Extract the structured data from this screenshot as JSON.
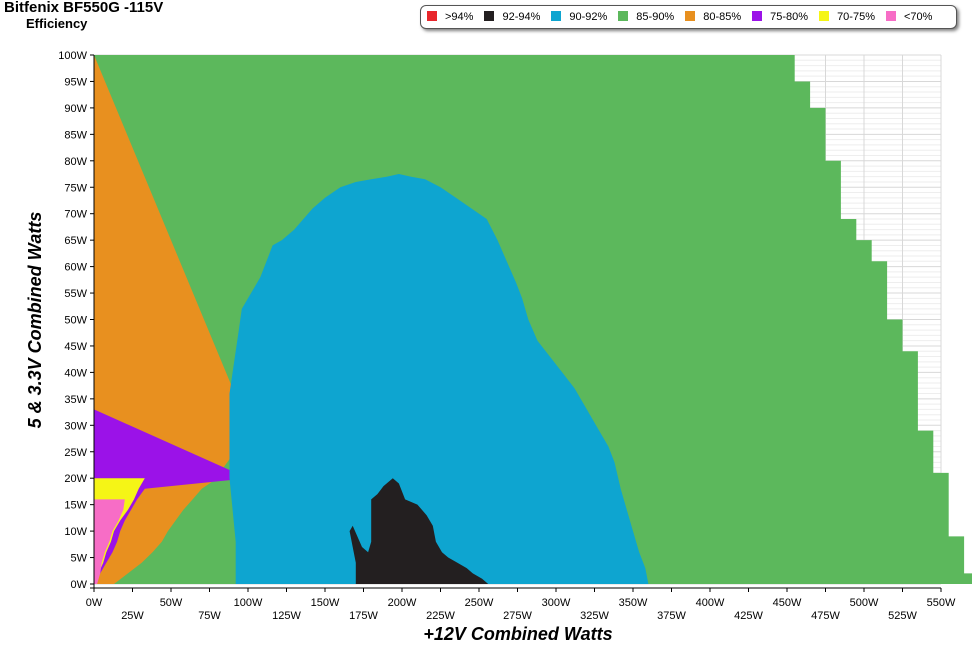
{
  "chart_data": {
    "type": "heatmap",
    "title": "Bitfenix BF550G -115V",
    "subtitle": "Efficiency",
    "xlabel": "+12V Combined Watts",
    "ylabel": "5 & 3.3V Combined Watts",
    "xlim": [
      0,
      550
    ],
    "ylim": [
      0,
      100
    ],
    "x_ticks": [
      "0W",
      "25W",
      "50W",
      "75W",
      "100W",
      "125W",
      "150W",
      "175W",
      "200W",
      "225W",
      "250W",
      "275W",
      "300W",
      "325W",
      "350W",
      "375W",
      "400W",
      "425W",
      "450W",
      "475W",
      "500W",
      "525W",
      "550W"
    ],
    "y_ticks": [
      "0W",
      "5W",
      "10W",
      "15W",
      "20W",
      "25W",
      "30W",
      "35W",
      "40W",
      "45W",
      "50W",
      "55W",
      "60W",
      "65W",
      "70W",
      "75W",
      "80W",
      "85W",
      "90W",
      "95W",
      "100W"
    ],
    "grid": true,
    "legend_position": "top-right",
    "legend": [
      {
        "label": ">94%",
        "color": "#e8262b"
      },
      {
        "label": "92-94%",
        "color": "#231f20"
      },
      {
        "label": "90-92%",
        "color": "#0ea5d0"
      },
      {
        "label": "85-90%",
        "color": "#5cb85c"
      },
      {
        "label": "80-85%",
        "color": "#e8901f"
      },
      {
        "label": "75-80%",
        "color": "#9b12e8"
      },
      {
        "label": "70-75%",
        "color": "#f5f516"
      },
      {
        "label": "<70%",
        "color": "#f76dc6"
      }
    ],
    "regions": {
      "max_total_load": [
        [
          0,
          100
        ],
        [
          455,
          100
        ],
        [
          455,
          95
        ],
        [
          465,
          95
        ],
        [
          465,
          90
        ],
        [
          475,
          90
        ],
        [
          475,
          80
        ],
        [
          485,
          80
        ],
        [
          485,
          69
        ],
        [
          495,
          69
        ],
        [
          495,
          65
        ],
        [
          505,
          65
        ],
        [
          505,
          61
        ],
        [
          515,
          61
        ],
        [
          515,
          50
        ],
        [
          525,
          50
        ],
        [
          525,
          44
        ],
        [
          535,
          44
        ],
        [
          535,
          29
        ],
        [
          545,
          29
        ],
        [
          545,
          21
        ],
        [
          555,
          21
        ],
        [
          555,
          9
        ],
        [
          565,
          9
        ],
        [
          565,
          2
        ],
        [
          575,
          2
        ],
        [
          575,
          0
        ],
        [
          0,
          0
        ]
      ],
      "band_85_90_min_x": [
        [
          0,
          13
        ],
        [
          2,
          22
        ],
        [
          4,
          31
        ],
        [
          6,
          38
        ],
        [
          8,
          44
        ],
        [
          10,
          48
        ],
        [
          12,
          53
        ],
        [
          14,
          58
        ],
        [
          16,
          64
        ],
        [
          18,
          70
        ],
        [
          20,
          80
        ],
        [
          22,
          84
        ],
        [
          24,
          89
        ],
        [
          26,
          93
        ],
        [
          28,
          99
        ],
        [
          30,
          100
        ]
      ],
      "band_80_85_min_x": [
        [
          0,
          1
        ],
        [
          2,
          4
        ],
        [
          4,
          8
        ],
        [
          6,
          12
        ],
        [
          8,
          15
        ],
        [
          10,
          17
        ],
        [
          12,
          20
        ],
        [
          14,
          24
        ],
        [
          16,
          28
        ],
        [
          18,
          33
        ],
        [
          20,
          100
        ]
      ],
      "band_75_80_min_x": [
        [
          0,
          1
        ],
        [
          2,
          3
        ],
        [
          4,
          6
        ],
        [
          6,
          8
        ],
        [
          8,
          11
        ],
        [
          10,
          13
        ],
        [
          12,
          17
        ],
        [
          14,
          22
        ],
        [
          16,
          26
        ],
        [
          18,
          29
        ],
        [
          20,
          33
        ]
      ],
      "band_70_75_min_x": [
        [
          0,
          2
        ],
        [
          2,
          4
        ],
        [
          4,
          5
        ],
        [
          6,
          7
        ],
        [
          8,
          10
        ],
        [
          10,
          12
        ],
        [
          12,
          16
        ],
        [
          14,
          19
        ],
        [
          16,
          20
        ]
      ],
      "band_90_92": [
        [
          92,
          0
        ],
        [
          92,
          8
        ],
        [
          90,
          14
        ],
        [
          88,
          20
        ],
        [
          88,
          28
        ],
        [
          88,
          36
        ],
        [
          90,
          40
        ],
        [
          92,
          44
        ],
        [
          94,
          48
        ],
        [
          96,
          52
        ],
        [
          100,
          54
        ],
        [
          104,
          56
        ],
        [
          108,
          58
        ],
        [
          112,
          61
        ],
        [
          116,
          64
        ],
        [
          122,
          65
        ],
        [
          130,
          67
        ],
        [
          136,
          69
        ],
        [
          142,
          71
        ],
        [
          150,
          73
        ],
        [
          160,
          75
        ],
        [
          170,
          76
        ],
        [
          180,
          76.5
        ],
        [
          190,
          77
        ],
        [
          198,
          77.5
        ],
        [
          206,
          77
        ],
        [
          215,
          76.5
        ],
        [
          225,
          75
        ],
        [
          235,
          73
        ],
        [
          245,
          71
        ],
        [
          255,
          69
        ],
        [
          262,
          65
        ],
        [
          268,
          61
        ],
        [
          274,
          57
        ],
        [
          278,
          54
        ],
        [
          282,
          50
        ],
        [
          288,
          46
        ],
        [
          296,
          43
        ],
        [
          304,
          40
        ],
        [
          312,
          37
        ],
        [
          320,
          33
        ],
        [
          328,
          29
        ],
        [
          334,
          26
        ],
        [
          338,
          23
        ],
        [
          342,
          18
        ],
        [
          346,
          14
        ],
        [
          350,
          10
        ],
        [
          354,
          6
        ],
        [
          358,
          3
        ],
        [
          360,
          0
        ]
      ],
      "band_92_94": [
        [
          170,
          0
        ],
        [
          170,
          4
        ],
        [
          168,
          7
        ],
        [
          166,
          10
        ],
        [
          168,
          11
        ],
        [
          174,
          7
        ],
        [
          178,
          6
        ],
        [
          180,
          8
        ],
        [
          180,
          12
        ],
        [
          180,
          16
        ],
        [
          184,
          17
        ],
        [
          188,
          18.5
        ],
        [
          194,
          20
        ],
        [
          198,
          19
        ],
        [
          202,
          16
        ],
        [
          210,
          15
        ],
        [
          216,
          13
        ],
        [
          220,
          11
        ],
        [
          222,
          8
        ],
        [
          226,
          6
        ],
        [
          230,
          5
        ],
        [
          236,
          4
        ],
        [
          242,
          3
        ],
        [
          246,
          2
        ],
        [
          252,
          1
        ],
        [
          256,
          0
        ]
      ]
    }
  }
}
